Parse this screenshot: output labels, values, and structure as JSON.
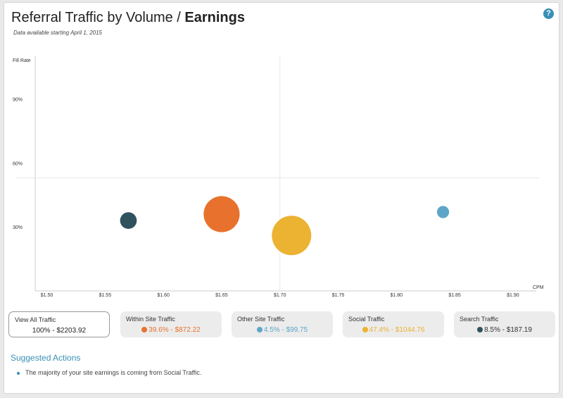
{
  "header": {
    "title_main": "Referral Traffic by Volume / ",
    "title_bold": "Earnings",
    "subtitle": "Data available starting April 1, 2015",
    "help_label": "?"
  },
  "colors": {
    "orange": "#e8722d",
    "blue": "#5ea6c7",
    "yellow": "#ecb232",
    "dark": "#2f535e",
    "link": "#3a8fb5"
  },
  "chart_data": {
    "type": "scatter",
    "xlabel": "CPM",
    "ylabel": "Fill Rate",
    "x_ticks": [
      "$1.50",
      "$1.55",
      "$1.60",
      "$1.65",
      "$1.70",
      "$1.75",
      "$1.80",
      "$1.85",
      "$1.90"
    ],
    "y_ticks": [
      "90%",
      "60%",
      "30%"
    ],
    "xlim": [
      1.49,
      1.92
    ],
    "ylim": [
      0,
      110
    ],
    "x_ref": 1.7,
    "y_ref": 53,
    "grid": false,
    "series": [
      {
        "name": "Within Site Traffic",
        "x": 1.65,
        "y": 36,
        "share": 39.6,
        "color": "#e8722d"
      },
      {
        "name": "Other Site Traffic",
        "x": 1.84,
        "y": 37,
        "share": 4.5,
        "color": "#5ea6c7"
      },
      {
        "name": "Social Traffic",
        "x": 1.71,
        "y": 26,
        "share": 47.4,
        "color": "#ecb232"
      },
      {
        "name": "Search Traffic",
        "x": 1.57,
        "y": 33,
        "share": 8.5,
        "color": "#2f535e"
      }
    ]
  },
  "filters": [
    {
      "label": "View All Traffic",
      "value": "100% - $2203.92",
      "color": "#222222",
      "active": true
    },
    {
      "label": "Within Site Traffic",
      "value": "39.6% - $872.22",
      "color": "#e8722d",
      "active": false
    },
    {
      "label": "Other Site Traffic",
      "value": "4.5% - $99.75",
      "color": "#5ea6c7",
      "active": false
    },
    {
      "label": "Social Traffic",
      "value": "47.4% - $1044.76",
      "color": "#ecb232",
      "active": false
    },
    {
      "label": "Search Traffic",
      "value": "8.5% - $187.19",
      "color": "#2f535e",
      "active": false
    }
  ],
  "suggestions": {
    "title": "Suggested Actions",
    "items": [
      "The majority of your site earnings is coming from Social Traffic."
    ]
  }
}
